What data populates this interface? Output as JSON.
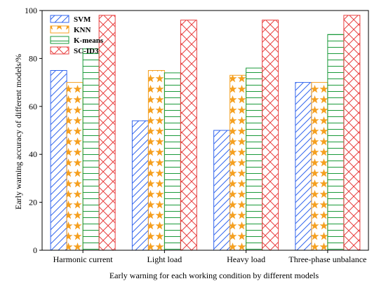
{
  "chart_data": {
    "type": "bar",
    "title": "",
    "xlabel": "Early warning for each working condition by different models",
    "ylabel": "Early warning accuracy of different models/%",
    "categories": [
      "Harmonic current",
      "Light load",
      "Heavy load",
      "Three-phase unbalance"
    ],
    "series": [
      {
        "name": "SVM",
        "values": [
          75,
          54,
          50,
          70
        ],
        "color": "#3366ee",
        "pattern": "diagonal-hatch"
      },
      {
        "name": "KNN",
        "values": [
          70,
          75,
          73,
          70
        ],
        "color": "#f5a020",
        "pattern": "stars"
      },
      {
        "name": "K-means",
        "values": [
          84,
          74,
          76,
          90
        ],
        "color": "#1a9a3a",
        "pattern": "horizontal-lines"
      },
      {
        "name": "SC-ID3",
        "values": [
          98,
          96,
          96,
          98
        ],
        "color": "#e84040",
        "pattern": "cross-hatch"
      }
    ],
    "ylim": [
      0,
      100
    ],
    "yticks": [
      "0",
      "20",
      "40",
      "60",
      "80",
      "100"
    ],
    "legend_position": "top-left",
    "grid": false
  }
}
